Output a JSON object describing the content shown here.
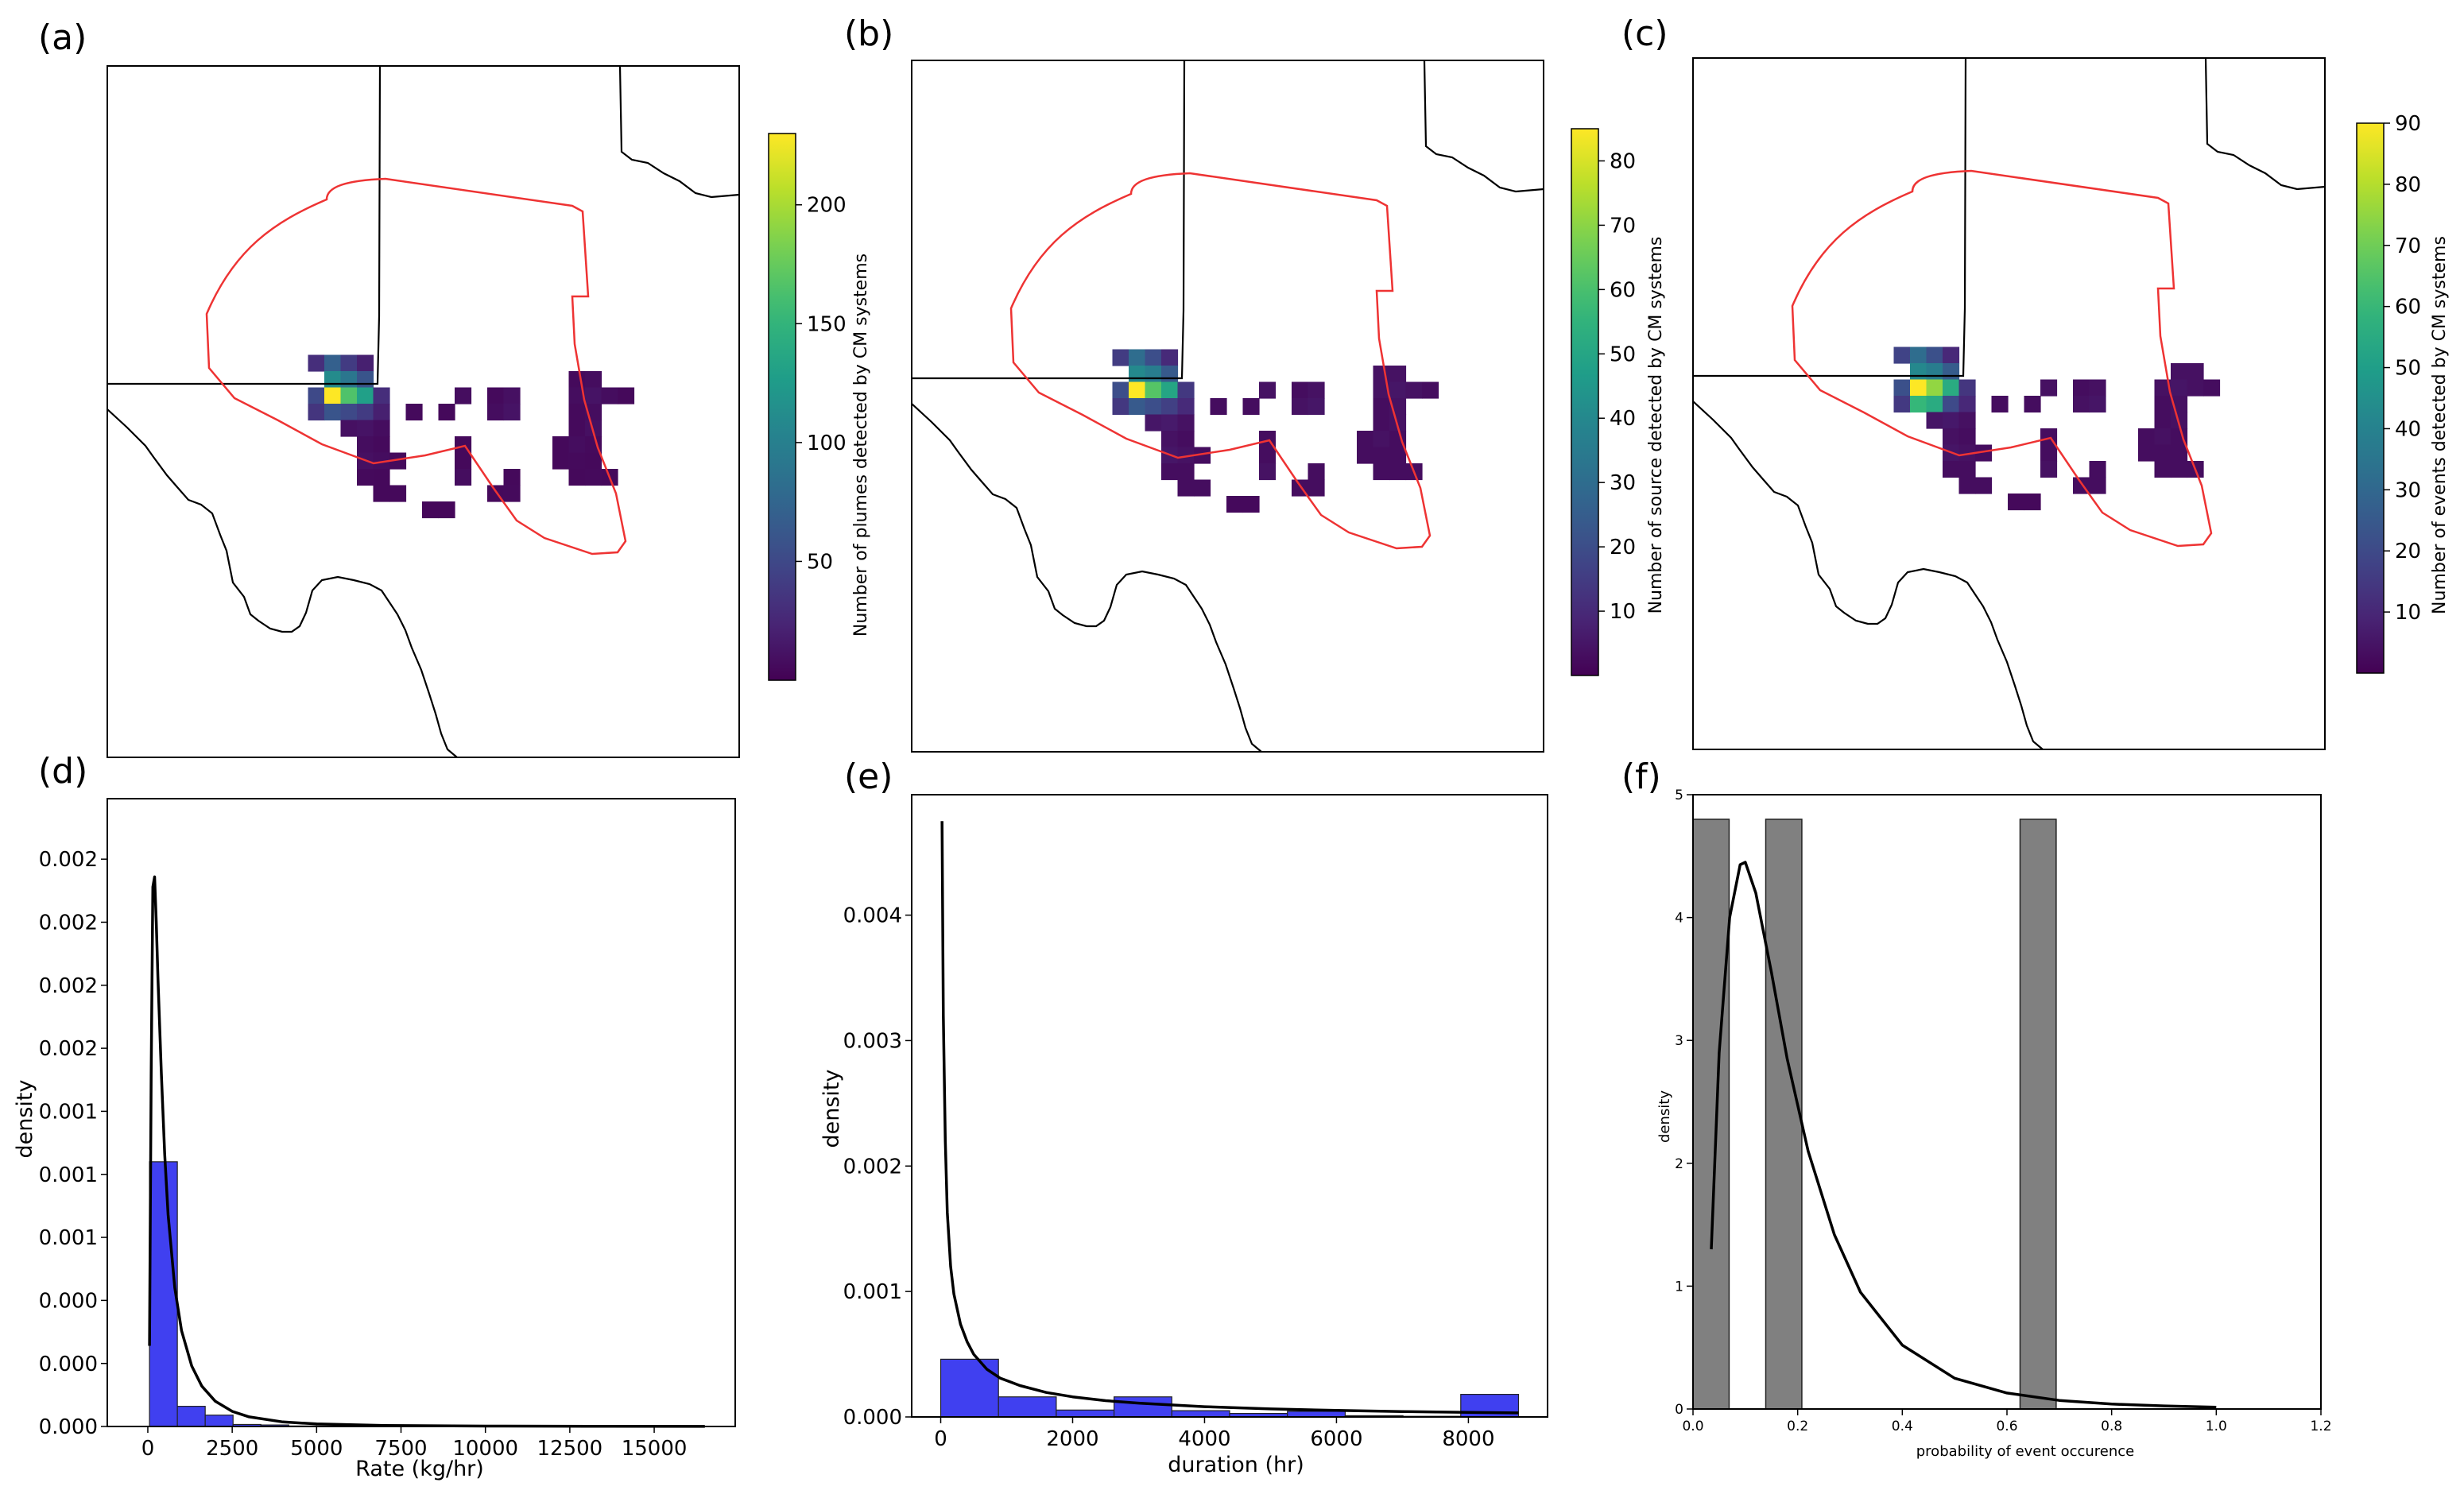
{
  "panel_labels": [
    "(a)",
    "(b)",
    "(c)",
    "(d)",
    "(e)",
    "(f)"
  ],
  "maps": [
    {
      "colorbar_label": "Number of plumes detected by CM systems",
      "colorbar_ticks": [
        50,
        100,
        150,
        200
      ],
      "vmin": 0,
      "vmax": 230,
      "cells": [
        [
          5,
          1,
          30
        ],
        [
          6,
          1,
          70
        ],
        [
          7,
          1,
          40
        ],
        [
          8,
          1,
          20
        ],
        [
          6,
          2,
          110
        ],
        [
          7,
          2,
          90
        ],
        [
          8,
          2,
          60
        ],
        [
          21,
          2,
          6
        ],
        [
          22,
          2,
          8
        ],
        [
          5,
          3,
          50
        ],
        [
          6,
          3,
          230
        ],
        [
          7,
          3,
          165
        ],
        [
          8,
          3,
          130
        ],
        [
          9,
          3,
          30
        ],
        [
          14,
          3,
          8
        ],
        [
          16,
          3,
          6
        ],
        [
          17,
          3,
          10
        ],
        [
          21,
          3,
          8
        ],
        [
          22,
          3,
          12
        ],
        [
          23,
          3,
          8
        ],
        [
          24,
          3,
          5
        ],
        [
          5,
          4,
          35
        ],
        [
          6,
          4,
          60
        ],
        [
          7,
          4,
          50
        ],
        [
          8,
          4,
          40
        ],
        [
          9,
          4,
          20
        ],
        [
          11,
          4,
          6
        ],
        [
          13,
          4,
          5
        ],
        [
          16,
          4,
          8
        ],
        [
          17,
          4,
          12
        ],
        [
          21,
          4,
          6
        ],
        [
          22,
          4,
          8
        ],
        [
          7,
          5,
          10
        ],
        [
          8,
          5,
          12
        ],
        [
          9,
          5,
          8
        ],
        [
          21,
          5,
          6
        ],
        [
          22,
          5,
          10
        ],
        [
          8,
          6,
          8
        ],
        [
          9,
          6,
          6
        ],
        [
          14,
          6,
          5
        ],
        [
          20,
          6,
          5
        ],
        [
          21,
          6,
          8
        ],
        [
          22,
          6,
          6
        ],
        [
          8,
          7,
          10
        ],
        [
          9,
          7,
          8
        ],
        [
          10,
          7,
          6
        ],
        [
          14,
          7,
          5
        ],
        [
          20,
          7,
          5
        ],
        [
          21,
          7,
          6
        ],
        [
          22,
          7,
          5
        ],
        [
          8,
          8,
          6
        ],
        [
          9,
          8,
          5
        ],
        [
          14,
          8,
          8
        ],
        [
          17,
          8,
          5
        ],
        [
          21,
          8,
          5
        ],
        [
          22,
          8,
          6
        ],
        [
          23,
          8,
          5
        ],
        [
          9,
          9,
          5
        ],
        [
          10,
          9,
          5
        ],
        [
          16,
          9,
          5
        ],
        [
          17,
          9,
          6
        ],
        [
          12,
          10,
          4
        ],
        [
          13,
          10,
          4
        ]
      ]
    },
    {
      "colorbar_label": "Number of source detected by CM systems",
      "colorbar_ticks": [
        10,
        20,
        30,
        40,
        50,
        60,
        70,
        80
      ],
      "vmin": 0,
      "vmax": 85,
      "cells": [
        [
          5,
          1,
          15
        ],
        [
          6,
          1,
          30
        ],
        [
          7,
          1,
          20
        ],
        [
          8,
          1,
          10
        ],
        [
          6,
          2,
          40
        ],
        [
          7,
          2,
          36
        ],
        [
          8,
          2,
          24
        ],
        [
          21,
          2,
          4
        ],
        [
          22,
          2,
          4
        ],
        [
          5,
          3,
          20
        ],
        [
          6,
          3,
          85
        ],
        [
          7,
          3,
          62
        ],
        [
          8,
          3,
          50
        ],
        [
          9,
          3,
          14
        ],
        [
          14,
          3,
          4
        ],
        [
          16,
          3,
          3
        ],
        [
          17,
          3,
          4
        ],
        [
          21,
          3,
          4
        ],
        [
          22,
          3,
          5
        ],
        [
          23,
          3,
          4
        ],
        [
          24,
          3,
          3
        ],
        [
          5,
          4,
          14
        ],
        [
          6,
          4,
          24
        ],
        [
          7,
          4,
          20
        ],
        [
          8,
          4,
          16
        ],
        [
          9,
          4,
          10
        ],
        [
          11,
          4,
          3
        ],
        [
          13,
          4,
          3
        ],
        [
          16,
          4,
          4
        ],
        [
          17,
          4,
          5
        ],
        [
          21,
          4,
          3
        ],
        [
          22,
          4,
          4
        ],
        [
          7,
          5,
          5
        ],
        [
          8,
          5,
          6
        ],
        [
          9,
          5,
          4
        ],
        [
          21,
          5,
          3
        ],
        [
          22,
          5,
          4
        ],
        [
          8,
          6,
          4
        ],
        [
          9,
          6,
          3
        ],
        [
          14,
          6,
          3
        ],
        [
          20,
          6,
          3
        ],
        [
          21,
          6,
          4
        ],
        [
          22,
          6,
          3
        ],
        [
          8,
          7,
          5
        ],
        [
          9,
          7,
          4
        ],
        [
          10,
          7,
          3
        ],
        [
          14,
          7,
          3
        ],
        [
          20,
          7,
          3
        ],
        [
          21,
          7,
          3
        ],
        [
          22,
          7,
          3
        ],
        [
          8,
          8,
          3
        ],
        [
          9,
          8,
          3
        ],
        [
          14,
          8,
          4
        ],
        [
          17,
          8,
          3
        ],
        [
          21,
          8,
          3
        ],
        [
          22,
          8,
          3
        ],
        [
          23,
          8,
          3
        ],
        [
          9,
          9,
          3
        ],
        [
          10,
          9,
          3
        ],
        [
          16,
          9,
          3
        ],
        [
          17,
          9,
          3
        ],
        [
          12,
          10,
          2
        ],
        [
          13,
          10,
          2
        ]
      ]
    },
    {
      "colorbar_label": "Number of events detected by CM systems",
      "colorbar_ticks": [
        10,
        20,
        30,
        40,
        50,
        60,
        70,
        80,
        90
      ],
      "vmin": 0,
      "vmax": 90,
      "cells": [
        [
          5,
          1,
          18
        ],
        [
          6,
          1,
          32
        ],
        [
          7,
          1,
          22
        ],
        [
          8,
          1,
          10
        ],
        [
          6,
          2,
          42
        ],
        [
          7,
          2,
          38
        ],
        [
          8,
          2,
          26
        ],
        [
          22,
          2,
          4
        ],
        [
          23,
          2,
          4
        ],
        [
          5,
          3,
          22
        ],
        [
          6,
          3,
          90
        ],
        [
          7,
          3,
          75
        ],
        [
          8,
          3,
          55
        ],
        [
          9,
          3,
          14
        ],
        [
          14,
          3,
          4
        ],
        [
          16,
          3,
          3
        ],
        [
          17,
          3,
          4
        ],
        [
          21,
          3,
          4
        ],
        [
          22,
          3,
          5
        ],
        [
          23,
          3,
          4
        ],
        [
          24,
          3,
          3
        ],
        [
          5,
          4,
          15
        ],
        [
          6,
          4,
          60
        ],
        [
          7,
          4,
          55
        ],
        [
          8,
          4,
          20
        ],
        [
          9,
          4,
          10
        ],
        [
          11,
          4,
          3
        ],
        [
          13,
          4,
          3
        ],
        [
          16,
          4,
          4
        ],
        [
          17,
          4,
          5
        ],
        [
          21,
          4,
          3
        ],
        [
          22,
          4,
          4
        ],
        [
          7,
          5,
          5
        ],
        [
          8,
          5,
          6
        ],
        [
          9,
          5,
          4
        ],
        [
          21,
          5,
          3
        ],
        [
          22,
          5,
          4
        ],
        [
          8,
          6,
          4
        ],
        [
          9,
          6,
          3
        ],
        [
          14,
          6,
          3
        ],
        [
          20,
          6,
          3
        ],
        [
          21,
          6,
          4
        ],
        [
          22,
          6,
          3
        ],
        [
          8,
          7,
          5
        ],
        [
          9,
          7,
          4
        ],
        [
          10,
          7,
          3
        ],
        [
          14,
          7,
          3
        ],
        [
          20,
          7,
          3
        ],
        [
          21,
          7,
          3
        ],
        [
          22,
          7,
          3
        ],
        [
          8,
          8,
          3
        ],
        [
          9,
          8,
          3
        ],
        [
          14,
          8,
          4
        ],
        [
          17,
          8,
          3
        ],
        [
          21,
          8,
          3
        ],
        [
          22,
          8,
          3
        ],
        [
          23,
          8,
          3
        ],
        [
          9,
          9,
          3
        ],
        [
          10,
          9,
          3
        ],
        [
          16,
          9,
          3
        ],
        [
          17,
          9,
          3
        ],
        [
          12,
          10,
          2
        ],
        [
          13,
          10,
          2
        ]
      ]
    }
  ],
  "chart_data": [
    {
      "type": "bar",
      "panel": "(d)",
      "xlabel": "Rate (kg/hr)",
      "ylabel": "density",
      "xlim": [
        -1200,
        17400
      ],
      "ylim": [
        0,
        0.00249
      ],
      "xticks": [
        0,
        2500,
        5000,
        7500,
        10000,
        12500,
        15000
      ],
      "xtick_labels": [
        "0",
        "2500",
        "5000",
        "7500",
        "10000",
        "12500",
        "15000"
      ],
      "yticks": [
        0,
        0.00025,
        0.0005,
        0.00075,
        0.001,
        0.00125,
        0.0015,
        0.00175,
        0.002,
        0.00225
      ],
      "ytick_labels": [
        "0.000",
        "0.000",
        "0.000",
        "0.001",
        "0.001",
        "0.001",
        "0.002",
        "0.002",
        "0.002",
        "0.002"
      ],
      "bar_color": "#4040f0",
      "bin_edges": [
        50,
        875,
        1700,
        2525,
        3350,
        4175,
        5000,
        5825,
        6650,
        7475,
        8300,
        9125,
        9950,
        10775,
        11600,
        12425,
        13250,
        14075,
        14900,
        15725,
        16550
      ],
      "values": [
        0.00105,
        8e-05,
        4.5e-05,
        8e-06,
        6e-06,
        2e-06,
        2e-06,
        3e-06,
        5e-07,
        0,
        0,
        0,
        0,
        0,
        0,
        0,
        0,
        0,
        0,
        0
      ],
      "fit_curve": {
        "name": "fit",
        "color": "#000000",
        "x": [
          50,
          100,
          150,
          200,
          250,
          300,
          400,
          500,
          600,
          800,
          1000,
          1300,
          1600,
          2000,
          2500,
          3000,
          4000,
          5000,
          7000,
          10000,
          13000,
          16500
        ],
        "y": [
          0.00032,
          0.0014,
          0.00214,
          0.00218,
          0.002,
          0.00178,
          0.0014,
          0.00108,
          0.00084,
          0.00055,
          0.00038,
          0.00024,
          0.00016,
          0.0001,
          6e-05,
          3.8e-05,
          1.8e-05,
          1e-05,
          4e-06,
          1.5e-06,
          8e-07,
          4e-07
        ]
      }
    },
    {
      "type": "bar",
      "panel": "(e)",
      "xlabel": "duration (hr)",
      "ylabel": "density",
      "xlim": [
        -440,
        9200
      ],
      "ylim": [
        0,
        0.00496
      ],
      "xticks": [
        0,
        2000,
        4000,
        6000,
        8000
      ],
      "xtick_labels": [
        "0",
        "2000",
        "4000",
        "6000",
        "8000"
      ],
      "yticks": [
        0,
        0.001,
        0.002,
        0.003,
        0.004
      ],
      "ytick_labels": [
        "0.000",
        "0.001",
        "0.002",
        "0.003",
        "0.004"
      ],
      "bar_color": "#4040f0",
      "bin_edges": [
        0,
        876,
        1752,
        2628,
        3504,
        4380,
        5256,
        6132,
        7008,
        7884,
        8760
      ],
      "values": [
        0.00046,
        0.00016,
        5.5e-05,
        0.00016,
        5e-05,
        2.8e-05,
        4.5e-05,
        1e-05,
        5e-06,
        0.00018
      ],
      "fit_curve": {
        "name": "fit",
        "color": "#000000",
        "x": [
          20,
          40,
          70,
          100,
          150,
          200,
          300,
          400,
          500,
          700,
          900,
          1200,
          1600,
          2000,
          2500,
          3000,
          4000,
          5000,
          6000,
          7000,
          8000,
          8760
        ],
        "y": [
          0.00475,
          0.0032,
          0.0022,
          0.00163,
          0.0012,
          0.00098,
          0.00074,
          0.0006,
          0.0005,
          0.00038,
          0.00031,
          0.00025,
          0.000195,
          0.00016,
          0.00013,
          0.00011,
          8.2e-05,
          6.4e-05,
          5.2e-05,
          4.3e-05,
          3.6e-05,
          3.2e-05
        ]
      }
    },
    {
      "type": "bar",
      "panel": "(f)",
      "xlabel": "probability of event occurence",
      "ylabel": "density",
      "xlim": [
        0,
        1.2
      ],
      "ylim": [
        0,
        5.0
      ],
      "xticks": [
        0,
        0.2,
        0.4,
        0.6,
        0.8,
        1.0,
        1.2
      ],
      "xtick_labels": [
        "0.0",
        "0.2",
        "0.4",
        "0.6",
        "0.8",
        "1.0",
        "1.2"
      ],
      "yticks": [
        0,
        1,
        2,
        3,
        4,
        5
      ],
      "ytick_labels": [
        "0",
        "1",
        "2",
        "3",
        "4",
        "5"
      ],
      "bar_color": "#808080",
      "bars": [
        {
          "x0": 0.0,
          "x1": 0.069,
          "value": 4.8
        },
        {
          "x0": 0.139,
          "x1": 0.208,
          "value": 4.8
        },
        {
          "x0": 0.625,
          "x1": 0.694,
          "value": 4.8
        }
      ],
      "fit_curve": {
        "name": "fit",
        "color": "#000000",
        "x": [
          0.035,
          0.05,
          0.07,
          0.09,
          0.1,
          0.12,
          0.15,
          0.18,
          0.22,
          0.27,
          0.32,
          0.4,
          0.5,
          0.6,
          0.7,
          0.8,
          0.9,
          1.0
        ],
        "y": [
          1.3,
          2.9,
          4.0,
          4.43,
          4.45,
          4.2,
          3.55,
          2.85,
          2.1,
          1.42,
          0.95,
          0.52,
          0.25,
          0.13,
          0.07,
          0.04,
          0.025,
          0.015
        ]
      }
    }
  ]
}
